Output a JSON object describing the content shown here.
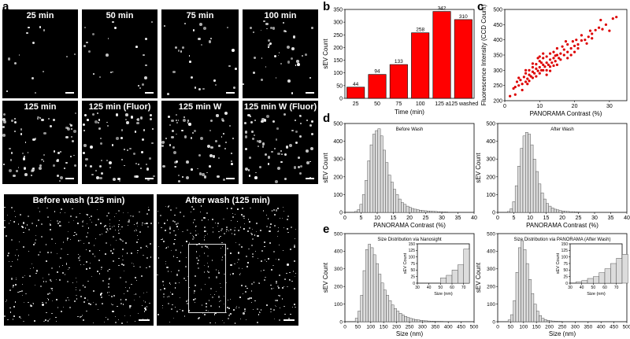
{
  "panel_labels": {
    "a": "a",
    "b": "b",
    "c": "c",
    "d": "d",
    "e": "e"
  },
  "micrographs": {
    "tiles": [
      "25 min",
      "50 min",
      "75 min",
      "100 min",
      "125 min",
      "125 min (Fluor)",
      "125 min W",
      "125 min W (Fluor)"
    ],
    "large": [
      "Before wash (125 min)",
      "After wash (125 min)"
    ]
  },
  "chart_data": [
    {
      "id": "b",
      "type": "bar",
      "categories": [
        "25",
        "50",
        "75",
        "100",
        "125 a",
        "125 washed"
      ],
      "values": [
        44,
        94,
        133,
        258,
        342,
        310
      ],
      "data_labels": [
        "44",
        "94",
        "133",
        "258",
        "342",
        "310"
      ],
      "xlabel": "Time (min)",
      "ylabel": "sEV Count",
      "ylim": [
        0,
        350
      ],
      "yticks": [
        0,
        50,
        100,
        150,
        200,
        250,
        300,
        350
      ],
      "xticks_text": [
        "25",
        "50",
        "75",
        "100",
        "125 a",
        "125 washed"
      ],
      "color": "#ff0000"
    },
    {
      "id": "c",
      "type": "scatter",
      "xlabel": "PANORAMA Contrast (%)",
      "ylabel": "Fluorescence Intensity (CCD Count)",
      "xlim": [
        0,
        35
      ],
      "ylim": [
        200,
        500
      ],
      "xticks": [
        0,
        10,
        20,
        30
      ],
      "yticks": [
        200,
        250,
        300,
        350,
        400,
        450,
        500
      ],
      "color": "#dd0000",
      "points": [
        [
          1.5,
          215
        ],
        [
          2.5,
          240
        ],
        [
          3,
          245
        ],
        [
          3.5,
          262
        ],
        [
          4,
          250
        ],
        [
          4.5,
          268
        ],
        [
          5,
          255
        ],
        [
          5.5,
          278
        ],
        [
          6,
          262
        ],
        [
          6,
          290
        ],
        [
          6.5,
          272
        ],
        [
          7,
          285
        ],
        [
          7,
          300
        ],
        [
          7.5,
          280
        ],
        [
          8,
          295
        ],
        [
          8,
          310
        ],
        [
          8.5,
          290
        ],
        [
          9,
          305
        ],
        [
          9,
          320
        ],
        [
          9.5,
          298
        ],
        [
          10,
          310
        ],
        [
          10,
          330
        ],
        [
          10.5,
          300
        ],
        [
          11,
          318
        ],
        [
          11,
          340
        ],
        [
          11.5,
          312
        ],
        [
          12,
          325
        ],
        [
          12,
          345
        ],
        [
          12.5,
          318
        ],
        [
          13,
          335
        ],
        [
          13,
          355
        ],
        [
          13.5,
          325
        ],
        [
          14,
          340
        ],
        [
          14,
          360
        ],
        [
          14.5,
          330
        ],
        [
          15,
          350
        ],
        [
          15,
          372
        ],
        [
          15.5,
          340
        ],
        [
          16,
          355
        ],
        [
          16.5,
          378
        ],
        [
          17,
          350
        ],
        [
          17,
          368
        ],
        [
          18,
          360
        ],
        [
          18,
          385
        ],
        [
          19,
          372
        ],
        [
          19.5,
          395
        ],
        [
          20,
          380
        ],
        [
          20.5,
          400
        ],
        [
          21,
          385
        ],
        [
          22,
          398
        ],
        [
          22,
          415
        ],
        [
          23,
          400
        ],
        [
          24,
          410
        ],
        [
          24.5,
          430
        ],
        [
          25,
          420
        ],
        [
          26,
          432
        ],
        [
          27,
          440
        ],
        [
          27.5,
          465
        ],
        [
          28,
          435
        ],
        [
          29,
          450
        ],
        [
          30,
          430
        ],
        [
          31,
          470
        ],
        [
          32,
          475
        ],
        [
          8,
          275
        ],
        [
          10,
          290
        ],
        [
          12,
          300
        ],
        [
          9,
          280
        ],
        [
          11,
          300
        ],
        [
          13,
          312
        ],
        [
          7,
          265
        ],
        [
          5,
          235
        ],
        [
          6,
          300
        ],
        [
          10,
          345
        ],
        [
          14,
          315
        ],
        [
          16,
          335
        ],
        [
          3,
          220
        ],
        [
          4,
          275
        ],
        [
          15,
          318
        ],
        [
          18,
          340
        ],
        [
          20,
          360
        ],
        [
          12,
          285
        ],
        [
          8,
          322
        ],
        [
          11,
          355
        ],
        [
          13,
          298
        ],
        [
          9.5,
          340
        ],
        [
          17.5,
          395
        ],
        [
          21,
          372
        ],
        [
          23.5,
          388
        ],
        [
          6.5,
          255
        ],
        [
          10.5,
          325
        ],
        [
          14.5,
          348
        ],
        [
          19,
          350
        ],
        [
          25,
          405
        ]
      ]
    },
    {
      "id": "d1",
      "type": "bar",
      "title": "Before Wash",
      "xlabel": "PANORAMA Contrast (%)",
      "ylabel": "sEV Count",
      "xlim": [
        0,
        40
      ],
      "ylim": [
        0,
        500
      ],
      "xticks": [
        0,
        5,
        10,
        15,
        20,
        25,
        30,
        35,
        40
      ],
      "yticks": [
        0,
        100,
        200,
        300,
        400,
        500
      ],
      "bin_start": 3,
      "bin_width": 0.8,
      "values": [
        5,
        15,
        45,
        100,
        180,
        290,
        380,
        440,
        460,
        470,
        430,
        350,
        280,
        210,
        170,
        130,
        100,
        75,
        55,
        45,
        35,
        28,
        22,
        18,
        15,
        12,
        10,
        9,
        8,
        7,
        6,
        5,
        4,
        4,
        3,
        3
      ]
    },
    {
      "id": "d2",
      "type": "bar",
      "title": "After Wash",
      "xlabel": "PANORAMA Contrast (%)",
      "ylabel": "sEV Count",
      "xlim": [
        0,
        40
      ],
      "ylim": [
        0,
        500
      ],
      "xticks": [
        0,
        5,
        10,
        15,
        20,
        25,
        30,
        35,
        40
      ],
      "yticks": [
        0,
        100,
        200,
        300,
        400,
        500
      ],
      "bin_start": 3,
      "bin_width": 0.8,
      "values": [
        5,
        20,
        60,
        150,
        260,
        360,
        430,
        450,
        440,
        380,
        300,
        230,
        160,
        110,
        75,
        50,
        35,
        25,
        18,
        14,
        10,
        8,
        6,
        5,
        4,
        4,
        3,
        3
      ]
    },
    {
      "id": "e1",
      "type": "bar",
      "title": "Size Distribution via Nanosight",
      "xlabel": "Size (nm)",
      "ylabel": "sEV Count",
      "xlim": [
        0,
        500
      ],
      "ylim": [
        0,
        500
      ],
      "xticks": [
        0,
        50,
        100,
        150,
        200,
        250,
        300,
        350,
        400,
        450,
        500
      ],
      "yticks": [
        0,
        100,
        200,
        300,
        400,
        500
      ],
      "bin_start": 40,
      "bin_width": 10,
      "values": [
        20,
        60,
        150,
        290,
        410,
        440,
        420,
        380,
        330,
        270,
        220,
        180,
        150,
        120,
        95,
        75,
        60,
        48,
        38,
        30,
        24,
        19,
        15,
        12,
        10,
        8,
        6,
        5,
        4,
        3,
        3,
        2,
        2,
        2,
        1,
        1
      ],
      "inset": {
        "xlim": [
          30,
          75
        ],
        "ylim": [
          0,
          150
        ],
        "xticks": [
          30,
          40,
          50,
          60,
          70
        ],
        "yticks": [
          0,
          25,
          50,
          75,
          100,
          125,
          150
        ],
        "xlabel": "Size (nm)",
        "ylabel": "sEV Count",
        "bin_start": 50,
        "bin_width": 5,
        "values": [
          20,
          30,
          50,
          70,
          130
        ]
      }
    },
    {
      "id": "e2",
      "type": "bar",
      "title": "Size Distribution via PANORAMA (After Wash)",
      "xlabel": "Size (nm)",
      "ylabel": "sEV Count",
      "xlim": [
        0,
        500
      ],
      "ylim": [
        0,
        500
      ],
      "xticks": [
        0,
        50,
        100,
        150,
        200,
        250,
        300,
        350,
        400,
        450,
        500
      ],
      "yticks": [
        0,
        100,
        200,
        300,
        400,
        500
      ],
      "bin_start": 40,
      "bin_width": 10,
      "values": [
        10,
        40,
        120,
        280,
        420,
        460,
        410,
        330,
        240,
        160,
        100,
        60,
        35,
        20,
        12,
        8,
        5,
        4,
        3,
        2,
        2,
        1
      ],
      "inset": {
        "xlim": [
          30,
          75
        ],
        "ylim": [
          0,
          150
        ],
        "xticks": [
          30,
          40,
          50,
          60,
          70
        ],
        "yticks": [
          0,
          25,
          50,
          75,
          100,
          125,
          150
        ],
        "xlabel": "Size (nm)",
        "ylabel": "sEV Count",
        "bin_start": 35,
        "bin_width": 5,
        "values": [
          5,
          10,
          18,
          25,
          40,
          55,
          75,
          95,
          110
        ]
      }
    }
  ]
}
